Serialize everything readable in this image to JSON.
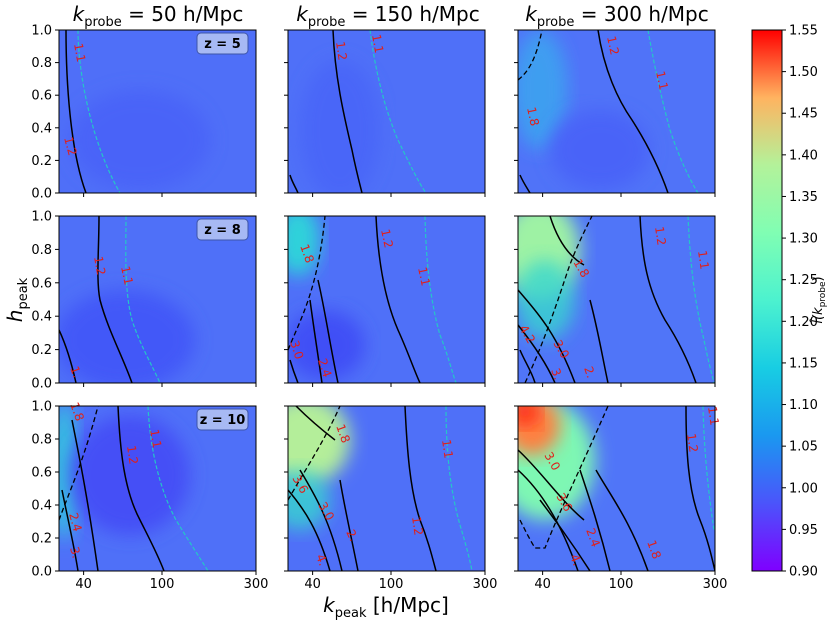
{
  "chart_data": {
    "type": "heatmap",
    "description_columns": [
      "k_probe = 50 h/Mpc",
      "k_probe = 150 h/Mpc",
      "k_probe = 300 h/Mpc"
    ],
    "columns": [
      {
        "k": "k",
        "sub": "probe",
        "rest": " = 50 h/Mpc"
      },
      {
        "k": "k",
        "sub": "probe",
        "rest": " = 150 h/Mpc"
      },
      {
        "k": "k",
        "sub": "probe",
        "rest": " = 300 h/Mpc"
      }
    ],
    "rows": [
      {
        "z_label": "z = 5",
        "z": 5
      },
      {
        "z_label": "z = 8",
        "z": 8
      },
      {
        "z_label": "z = 10",
        "z": 10
      }
    ],
    "xlabel": {
      "k": "k",
      "sub": "peak",
      "rest": " [h/Mpc]"
    },
    "ylabel": {
      "h": "h",
      "sub": "peak"
    },
    "xscale": "log",
    "xlim": [
      30,
      300
    ],
    "xticks": [
      {
        "value": 40,
        "label": "40"
      },
      {
        "value": 100,
        "label": "100"
      },
      {
        "value": 300,
        "label": "300"
      }
    ],
    "ylim": [
      0.0,
      1.0
    ],
    "yticks": [
      "0.0",
      "0.2",
      "0.4",
      "0.6",
      "0.8",
      "1.0"
    ],
    "colorbar": {
      "label_main": "l̂(k",
      "label_sub": "probe",
      "label_end": ")",
      "min": 0.9,
      "max": 1.55,
      "ticks": [
        "0.90",
        "0.95",
        "1.00",
        "1.05",
        "1.10",
        "1.15",
        "1.20",
        "1.25",
        "1.30",
        "1.35",
        "1.40",
        "1.45",
        "1.50",
        "1.55"
      ],
      "colormap": "rainbow"
    },
    "contour_labels": [
      [
        "1.1",
        "1.2",
        "1.2",
        "1.1",
        "1.1",
        "1.2",
        "1.8",
        "1.1",
        "1.2"
      ],
      [
        "1.2",
        "1.1",
        "1.",
        "1.8",
        "1.2",
        "1.1",
        "3.0",
        "2.4",
        "1.8",
        "1.2",
        "1.1",
        "4.2",
        "3.0",
        "3.",
        "2."
      ],
      [
        "1.8",
        "1.2",
        "1.1",
        "2.4",
        "3.",
        "1.8",
        "1.1",
        "1.2",
        "3.6",
        "3.0",
        "2.",
        "4.",
        "1.1",
        "1.2",
        "3.0",
        "3.6",
        "2.4",
        "4.",
        "1.8"
      ]
    ]
  }
}
